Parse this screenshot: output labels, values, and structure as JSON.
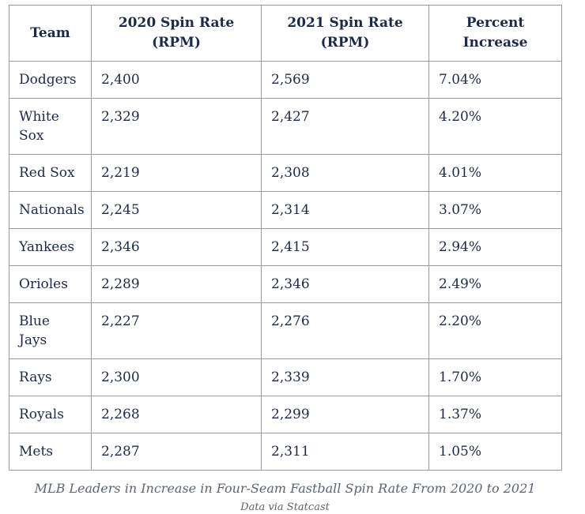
{
  "colors": {
    "text_navy": "#1c2a49",
    "grid_border": "#9b9b9b",
    "caption_slate": "#5a6572",
    "background": "#ffffff"
  },
  "table": {
    "headers": [
      {
        "lines": [
          "Team"
        ]
      },
      {
        "lines": [
          "2020 Spin Rate",
          "(RPM)"
        ]
      },
      {
        "lines": [
          "2021 Spin Rate",
          "(RPM)"
        ]
      },
      {
        "lines": [
          "Percent",
          "Increase"
        ]
      }
    ],
    "rows": [
      [
        "Dodgers",
        "2,400",
        "2,569",
        "7.04%"
      ],
      [
        "White Sox",
        "2,329",
        "2,427",
        "4.20%"
      ],
      [
        "Red Sox",
        "2,219",
        "2,308",
        "4.01%"
      ],
      [
        "Nationals",
        "2,245",
        "2,314",
        "3.07%"
      ],
      [
        "Yankees",
        "2,346",
        "2,415",
        "2.94%"
      ],
      [
        "Orioles",
        "2,289",
        "2,346",
        "2.49%"
      ],
      [
        "Blue Jays",
        "2,227",
        "2,276",
        "2.20%"
      ],
      [
        "Rays",
        "2,300",
        "2,339",
        "1.70%"
      ],
      [
        "Royals",
        "2,268",
        "2,299",
        "1.37%"
      ],
      [
        "Mets",
        "2,287",
        "2,311",
        "1.05%"
      ]
    ]
  },
  "caption": {
    "title": "MLB Leaders in Increase in Four-Seam Fastball Spin Rate From 2020 to 2021",
    "source": "Data via Statcast"
  },
  "chart_data": {
    "type": "table",
    "title": "MLB Leaders in Increase in Four-Seam Fastball Spin Rate From 2020 to 2021",
    "source_note": "Data via Statcast",
    "columns": [
      "Team",
      "2020 Spin Rate (RPM)",
      "2021 Spin Rate (RPM)",
      "Percent Increase"
    ],
    "teams": [
      "Dodgers",
      "White Sox",
      "Red Sox",
      "Nationals",
      "Yankees",
      "Orioles",
      "Blue Jays",
      "Rays",
      "Royals",
      "Mets"
    ],
    "spin_rate_2020": [
      2400,
      2329,
      2219,
      2245,
      2346,
      2289,
      2227,
      2300,
      2268,
      2287
    ],
    "spin_rate_2021": [
      2569,
      2427,
      2308,
      2314,
      2415,
      2346,
      2276,
      2339,
      2299,
      2311
    ],
    "percent_increase": [
      7.04,
      4.2,
      4.01,
      3.07,
      2.94,
      2.49,
      2.2,
      1.7,
      1.37,
      1.05
    ]
  }
}
